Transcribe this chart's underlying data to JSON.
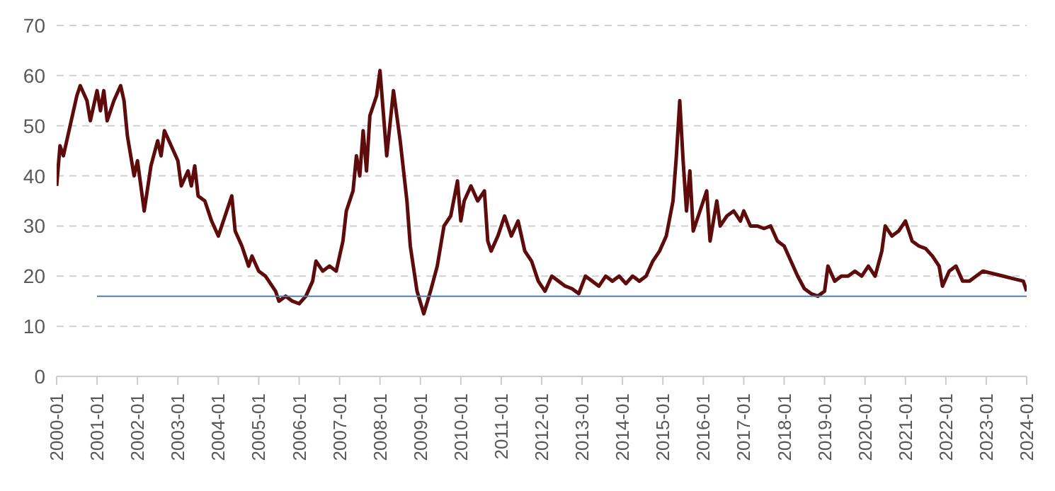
{
  "chart_data": {
    "type": "line",
    "xlim": [
      "2000-01",
      "2024-01"
    ],
    "xticks": [
      "2000-01",
      "2001-01",
      "2002-01",
      "2003-01",
      "2004-01",
      "2005-01",
      "2006-01",
      "2007-01",
      "2008-01",
      "2009-01",
      "2010-01",
      "2011-01",
      "2012-01",
      "2013-01",
      "2014-01",
      "2015-01",
      "2016-01",
      "2017-01",
      "2018-01",
      "2019-01",
      "2020-01",
      "2021-01",
      "2022-01",
      "2023-01",
      "2024-01"
    ],
    "ylim": [
      0,
      70
    ],
    "yticks": [
      0,
      10,
      20,
      30,
      40,
      50,
      60,
      70
    ],
    "grid": "y",
    "marker": "none",
    "line_style": "solid",
    "series": [
      {
        "color": "#5e0b0b",
        "x": [
          "2000-01",
          "2000-02",
          "2000-03",
          "2000-05",
          "2000-07",
          "2000-08",
          "2000-10",
          "2000-11",
          "2001-01",
          "2001-02",
          "2001-03",
          "2001-04",
          "2001-06",
          "2001-08",
          "2001-09",
          "2001-10",
          "2001-12",
          "2002-01",
          "2002-03",
          "2002-05",
          "2002-07",
          "2002-08",
          "2002-09",
          "2002-11",
          "2003-01",
          "2003-02",
          "2003-04",
          "2003-05",
          "2003-06",
          "2003-07",
          "2003-09",
          "2003-11",
          "2004-01",
          "2004-03",
          "2004-05",
          "2004-06",
          "2004-08",
          "2004-10",
          "2004-11",
          "2005-01",
          "2005-03",
          "2005-04",
          "2005-06",
          "2005-07",
          "2005-09",
          "2005-11",
          "2006-01",
          "2006-03",
          "2006-05",
          "2006-06",
          "2006-08",
          "2006-10",
          "2006-12",
          "2007-02",
          "2007-03",
          "2007-05",
          "2007-06",
          "2007-07",
          "2007-08",
          "2007-09",
          "2007-10",
          "2007-12",
          "2008-01",
          "2008-03",
          "2008-05",
          "2008-07",
          "2008-09",
          "2008-10",
          "2008-12",
          "2009-02",
          "2009-04",
          "2009-06",
          "2009-08",
          "2009-10",
          "2009-12",
          "2010-01",
          "2010-02",
          "2010-04",
          "2010-06",
          "2010-08",
          "2010-09",
          "2010-10",
          "2010-12",
          "2011-02",
          "2011-04",
          "2011-06",
          "2011-08",
          "2011-10",
          "2011-12",
          "2012-02",
          "2012-04",
          "2012-06",
          "2012-08",
          "2012-10",
          "2012-12",
          "2013-02",
          "2013-04",
          "2013-06",
          "2013-08",
          "2013-10",
          "2013-12",
          "2014-02",
          "2014-04",
          "2014-06",
          "2014-08",
          "2014-10",
          "2014-12",
          "2015-02",
          "2015-04",
          "2015-05",
          "2015-06",
          "2015-07",
          "2015-08",
          "2015-09",
          "2015-10",
          "2015-12",
          "2016-02",
          "2016-03",
          "2016-05",
          "2016-06",
          "2016-08",
          "2016-10",
          "2016-12",
          "2017-01",
          "2017-03",
          "2017-05",
          "2017-07",
          "2017-09",
          "2017-11",
          "2018-01",
          "2018-03",
          "2018-05",
          "2018-07",
          "2018-09",
          "2018-11",
          "2019-01",
          "2019-02",
          "2019-04",
          "2019-06",
          "2019-08",
          "2019-10",
          "2019-12",
          "2020-02",
          "2020-04",
          "2020-06",
          "2020-07",
          "2020-09",
          "2020-11",
          "2021-01",
          "2021-03",
          "2021-05",
          "2021-07",
          "2021-09",
          "2021-11",
          "2021-12",
          "2022-02",
          "2022-04",
          "2022-06",
          "2022-08",
          "2022-10",
          "2022-12",
          "2023-03",
          "2023-06",
          "2023-09",
          "2023-12",
          "2024-01"
        ],
        "values": [
          38,
          46,
          44,
          50,
          56,
          58,
          55,
          51,
          57,
          53,
          57,
          51,
          55,
          58,
          55,
          48,
          40,
          43,
          33,
          42,
          47,
          44,
          49,
          46,
          43,
          38,
          41,
          38,
          42,
          36,
          35,
          31,
          28,
          32,
          36,
          29,
          26,
          22,
          24,
          21,
          20,
          19,
          17,
          15,
          16,
          15,
          14.5,
          16,
          19,
          23,
          21,
          22,
          21,
          27,
          33,
          37,
          44,
          40,
          49,
          41,
          52,
          56,
          61,
          44,
          57,
          47,
          35,
          26,
          17,
          12.5,
          17,
          22,
          30,
          32,
          39,
          31,
          35,
          38,
          35,
          37,
          27,
          25,
          28,
          32,
          28,
          31,
          25,
          23,
          19,
          17,
          20,
          19,
          18,
          17.5,
          16.5,
          20,
          19,
          18,
          20,
          19,
          20,
          18.5,
          20,
          19,
          20,
          23,
          25,
          28,
          35,
          44,
          55,
          43,
          33,
          41,
          29,
          33,
          37,
          27,
          35,
          30,
          32,
          33,
          31,
          33,
          30,
          30,
          29.5,
          30,
          27,
          26,
          23,
          20,
          17.5,
          16.5,
          16,
          17,
          22,
          19,
          20,
          20,
          21,
          20,
          22,
          20,
          25,
          30,
          28,
          29,
          31,
          27,
          26,
          25.5,
          24,
          22,
          18,
          21,
          22,
          19,
          19,
          20,
          21,
          20.5,
          20,
          19.5,
          19,
          17
        ]
      },
      {
        "color": "#4f7fa8",
        "x": [
          "2001-01",
          "2024-01"
        ],
        "values": [
          16,
          16
        ]
      }
    ]
  }
}
